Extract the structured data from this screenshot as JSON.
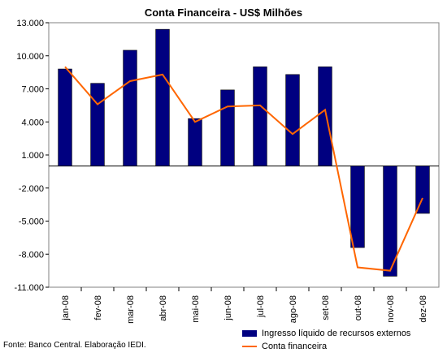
{
  "chart_data": {
    "type": "bar",
    "title": "Conta Financeira - US$ Milhões",
    "categories": [
      "jan-08",
      "fev-08",
      "mar-08",
      "abr-08",
      "mai-08",
      "jun-08",
      "jul-08",
      "ago-08",
      "set-08",
      "out-08",
      "nov-08",
      "dez-08"
    ],
    "series": [
      {
        "name": "Ingresso líquido de recursos externos",
        "type": "bar",
        "color": "#000080",
        "values": [
          8800,
          7500,
          10500,
          12400,
          4300,
          6900,
          9000,
          8300,
          9000,
          -7400,
          -10000,
          -4300
        ]
      },
      {
        "name": "Conta financeira",
        "type": "line",
        "color": "#ff6600",
        "values": [
          9000,
          5600,
          7700,
          8300,
          4000,
          5400,
          5500,
          2900,
          5100,
          -9200,
          -9500,
          -2900
        ]
      }
    ],
    "yticks": [
      "13.000",
      "10.000",
      "7.000",
      "4.000",
      "1.000",
      "-2.000",
      "-5.000",
      "-8.000",
      "-11.000"
    ],
    "ylim": [
      -11000,
      13000
    ],
    "grid": false,
    "legend_position": "bottom-right"
  },
  "source": "Fonte: Banco Central. Elaboração IEDI."
}
